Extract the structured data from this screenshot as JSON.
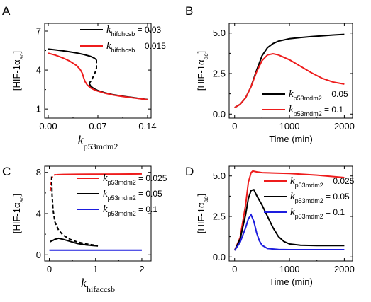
{
  "chart_data": [
    {
      "panel": "A",
      "type": "line",
      "xlabel": "k",
      "xlabel_sub": "p53mdm2",
      "ylabel": "[HIF-1α",
      "ylabel_sub": "ac",
      "ylabel_end": "]",
      "xlim": [
        -0.005,
        0.145
      ],
      "ylim": [
        0.3,
        7.6
      ],
      "xticks": [
        0.0,
        0.07,
        0.14
      ],
      "xtick_labels": [
        "0.00",
        "0.07",
        "0.14"
      ],
      "yticks": [
        1,
        4,
        7
      ],
      "ytick_labels": [
        "1",
        "4",
        "7"
      ],
      "legend_position": "top-right",
      "series": [
        {
          "name_prefix": "k",
          "name_sub": "hifohcsb",
          "name_value": " = 0.03",
          "color": "#000000",
          "dashed_segment": [
            0.058,
            0.068
          ],
          "x": [
            0.0,
            0.01,
            0.02,
            0.03,
            0.04,
            0.05,
            0.06,
            0.065,
            0.068,
            0.068,
            0.066,
            0.064,
            0.062,
            0.06,
            0.058,
            0.058,
            0.06,
            0.065,
            0.07,
            0.08,
            0.09,
            0.1,
            0.11,
            0.12,
            0.13,
            0.14
          ],
          "y": [
            5.62,
            5.56,
            5.49,
            5.41,
            5.32,
            5.2,
            5.05,
            4.92,
            4.8,
            4.15,
            3.8,
            3.55,
            3.35,
            3.15,
            3.0,
            2.95,
            2.75,
            2.55,
            2.42,
            2.25,
            2.12,
            2.03,
            1.95,
            1.88,
            1.8,
            1.73
          ]
        },
        {
          "name_prefix": "k",
          "name_sub": "hifohcsb",
          "name_value": " = 0.015",
          "color": "#ee1c1c",
          "x": [
            0.0,
            0.01,
            0.02,
            0.03,
            0.04,
            0.045,
            0.048,
            0.05,
            0.052,
            0.055,
            0.06,
            0.065,
            0.07,
            0.08,
            0.09,
            0.1,
            0.11,
            0.12,
            0.13,
            0.14
          ],
          "y": [
            5.3,
            5.15,
            4.95,
            4.7,
            4.35,
            4.05,
            3.75,
            3.4,
            3.1,
            2.85,
            2.62,
            2.48,
            2.38,
            2.22,
            2.1,
            2.0,
            1.93,
            1.86,
            1.79,
            1.72
          ]
        }
      ]
    },
    {
      "panel": "B",
      "type": "line",
      "xlabel": "Time (min)",
      "ylabel": "[HIF-1α",
      "ylabel_sub": "ac",
      "ylabel_end": "]",
      "xlim": [
        -100,
        2150
      ],
      "ylim": [
        -0.25,
        5.6
      ],
      "xticks": [
        0,
        1000,
        2000
      ],
      "xtick_labels": [
        "0",
        "1000",
        "2000"
      ],
      "yticks": [
        0,
        2.5,
        5
      ],
      "ytick_labels": [
        "0.0",
        "2.5",
        "5.0"
      ],
      "legend_position": "bottom-right",
      "series": [
        {
          "name_prefix": "k",
          "name_sub": "p53mdm2",
          "name_value": " = 0.05",
          "color": "#000000",
          "x": [
            0,
            100,
            200,
            300,
            400,
            500,
            600,
            700,
            800,
            1000,
            1200,
            1400,
            1600,
            1800,
            2000
          ],
          "y": [
            0.4,
            0.6,
            1.0,
            1.7,
            2.7,
            3.6,
            4.1,
            4.35,
            4.5,
            4.65,
            4.72,
            4.78,
            4.83,
            4.88,
            4.92
          ]
        },
        {
          "name_prefix": "k",
          "name_sub": "p53mdm2",
          "name_value": " = 0.1",
          "color": "#ee1c1c",
          "x": [
            0,
            100,
            200,
            300,
            400,
            500,
            600,
            700,
            800,
            1000,
            1200,
            1400,
            1600,
            1800,
            2000
          ],
          "y": [
            0.4,
            0.6,
            1.0,
            1.7,
            2.6,
            3.3,
            3.65,
            3.72,
            3.65,
            3.35,
            2.95,
            2.55,
            2.2,
            1.97,
            1.85
          ]
        }
      ]
    },
    {
      "panel": "C",
      "type": "line",
      "xlabel": "k",
      "xlabel_sub": "hifaccsb",
      "ylabel": "[HIF-1α",
      "ylabel_sub": "ac",
      "ylabel_end": "]",
      "xlim": [
        -0.1,
        2.2
      ],
      "ylim": [
        -0.6,
        8.6
      ],
      "xticks": [
        0,
        1,
        2
      ],
      "xtick_labels": [
        "0",
        "1",
        "2"
      ],
      "yticks": [
        0,
        4,
        8
      ],
      "ytick_labels": [
        "0",
        "4",
        "8"
      ],
      "legend_position": "right",
      "series": [
        {
          "name_prefix": "k",
          "name_sub": "p53mdm2",
          "name_value": " = 0.025",
          "color": "#ee1c1c",
          "dashed_segment": [
            0.02,
            0.2
          ],
          "x": [
            0.02,
            0.05,
            0.08,
            0.1,
            0.15,
            0.3,
            0.6,
            1.0,
            1.5,
            2.0
          ],
          "y": [
            6.2,
            7.4,
            7.7,
            7.75,
            7.78,
            7.8,
            7.82,
            7.83,
            7.84,
            7.85
          ]
        },
        {
          "name_prefix": "k",
          "name_sub": "p53mdm2",
          "name_value": " = 0.05",
          "color": "#000000",
          "x": [
            0.02,
            0.03,
            0.05,
            0.08,
            0.12,
            0.2,
            0.3,
            0.45,
            0.6,
            0.8,
            1.0,
            1.05
          ],
          "y": [
            1.25,
            1.3,
            1.35,
            1.4,
            1.5,
            1.6,
            1.5,
            1.3,
            1.1,
            0.95,
            0.88,
            0.86
          ]
        },
        {
          "name_prefix": "k",
          "name_sub": "p53mdm2",
          "name_value": " = 0.1",
          "color": "#1d1dde",
          "x": [
            0.0,
            0.5,
            1.0,
            1.5,
            2.0
          ],
          "y": [
            0.45,
            0.45,
            0.45,
            0.45,
            0.45
          ]
        }
      ]
    },
    {
      "panel": "D",
      "type": "line",
      "xlabel": "Time (min)",
      "ylabel": "[HIF-1α",
      "ylabel_sub": "ac",
      "ylabel_end": "]",
      "xlim": [
        -100,
        2150
      ],
      "ylim": [
        -0.25,
        5.6
      ],
      "xticks": [
        0,
        1000,
        2000
      ],
      "xtick_labels": [
        "0",
        "1000",
        "2000"
      ],
      "yticks": [
        0,
        2.5,
        5
      ],
      "ytick_labels": [
        "0.0",
        "2.5",
        "5.0"
      ],
      "legend_position": "top-right",
      "series": [
        {
          "name_prefix": "k",
          "name_sub": "p53mdm2",
          "name_value": " = 0.025",
          "color": "#ee1c1c",
          "x": [
            0,
            100,
            200,
            250,
            300,
            330,
            400,
            500,
            700,
            1000,
            1500,
            2000
          ],
          "y": [
            0.4,
            1.2,
            3.2,
            4.6,
            5.2,
            5.3,
            5.25,
            5.2,
            5.18,
            5.15,
            5.05,
            4.9
          ]
        },
        {
          "name_prefix": "k",
          "name_sub": "p53mdm2",
          "name_value": " = 0.05",
          "color": "#000000",
          "x": [
            0,
            100,
            200,
            250,
            300,
            350,
            400,
            500,
            600,
            700,
            800,
            900,
            1000,
            1200,
            1500,
            2000
          ],
          "y": [
            0.4,
            1.1,
            2.6,
            3.6,
            4.1,
            4.15,
            3.8,
            3.2,
            2.5,
            1.8,
            1.25,
            0.95,
            0.8,
            0.72,
            0.7,
            0.7
          ]
        },
        {
          "name_prefix": "k",
          "name_sub": "p53mdm2",
          "name_value": " = 0.1",
          "color": "#1d1dde",
          "x": [
            0,
            100,
            200,
            250,
            300,
            350,
            400,
            450,
            500,
            600,
            800,
            1000,
            1500,
            2000
          ],
          "y": [
            0.4,
            0.9,
            1.8,
            2.35,
            2.6,
            2.2,
            1.5,
            1.0,
            0.72,
            0.52,
            0.46,
            0.45,
            0.45,
            0.45
          ]
        }
      ]
    }
  ],
  "panel_letters": [
    "A",
    "B",
    "C",
    "D"
  ]
}
